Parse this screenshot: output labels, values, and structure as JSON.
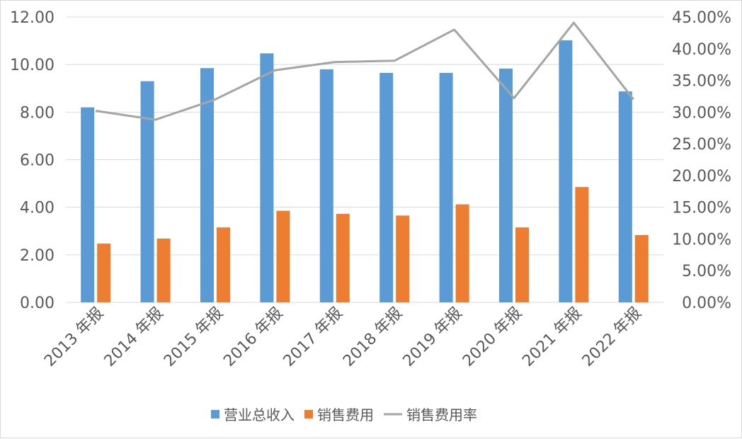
{
  "chart_data": {
    "type": "bar",
    "categories": [
      "2013 年报",
      "2014 年报",
      "2015 年报",
      "2016 年报",
      "2017 年报",
      "2018 年报",
      "2019 年报",
      "2020 年报",
      "2021 年报",
      "2022 年报"
    ],
    "series": [
      {
        "name": "营业总收入",
        "type": "bar",
        "axis": "left",
        "color": "#5b9bd5",
        "values": [
          8.2,
          9.3,
          9.85,
          10.47,
          9.8,
          9.65,
          9.65,
          9.83,
          11.02,
          8.87
        ]
      },
      {
        "name": "销售费用",
        "type": "bar",
        "axis": "left",
        "color": "#ed7d31",
        "values": [
          2.47,
          2.68,
          3.15,
          3.85,
          3.72,
          3.65,
          4.12,
          3.15,
          4.85,
          2.83
        ]
      },
      {
        "name": "销售费用率",
        "type": "line",
        "axis": "right",
        "color": "#a5a5a5",
        "values": [
          30.2,
          28.8,
          32.0,
          36.6,
          37.9,
          38.1,
          43.0,
          32.2,
          44.1,
          32.0
        ]
      }
    ],
    "left_axis": {
      "ylim": [
        0,
        12
      ],
      "ticks": [
        "0.00",
        "2.00",
        "4.00",
        "6.00",
        "8.00",
        "10.00",
        "12.00"
      ]
    },
    "right_axis": {
      "ylim": [
        0,
        45
      ],
      "ticks": [
        "0.00%",
        "5.00%",
        "10.00%",
        "15.00%",
        "20.00%",
        "25.00%",
        "30.00%",
        "35.00%",
        "40.00%",
        "45.00%"
      ]
    },
    "grid": true,
    "legend_position": "bottom"
  }
}
